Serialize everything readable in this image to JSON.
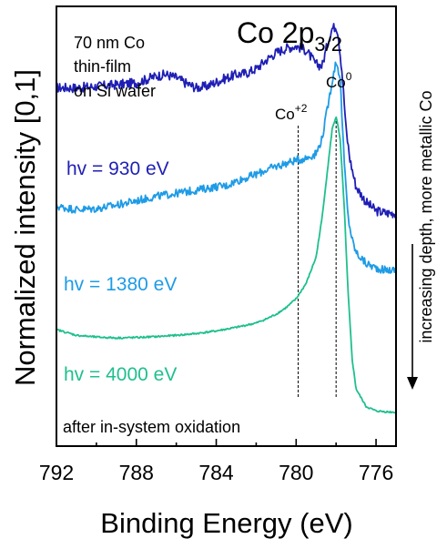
{
  "chart_data": {
    "type": "line",
    "title": "Co 2p",
    "title_subscript": "3/2",
    "xlabel": "Binding Energy (eV)",
    "ylabel": "Normalized intensity [0,1]",
    "xlim": [
      792,
      775
    ],
    "x_reversed": true,
    "ylim": [
      0,
      1
    ],
    "y_ticks_shown": false,
    "x_ticks": [
      "792",
      "788",
      "784",
      "780",
      "776"
    ],
    "x_tick_values": [
      792,
      788,
      784,
      780,
      776
    ],
    "sample_note": [
      "70 nm Co",
      "thin-film",
      "on Si wafer"
    ],
    "bottom_note": "after in-system oxidation",
    "side_note": "increasing depth, more metallic Co",
    "colors": {
      "axis": "#000000",
      "ref_lines": "#000000"
    },
    "reference_lines": [
      {
        "label_base": "Co",
        "label_sup": "+2",
        "x": 779.9
      },
      {
        "label_base": "Co",
        "label_sup": "0",
        "x": 778.0
      }
    ],
    "series": [
      {
        "name": "hv = 930 eV",
        "color": "#1f1fb5",
        "x": [
          792,
          791,
          790,
          789,
          788,
          787,
          786.5,
          786,
          785.5,
          785,
          784.5,
          784,
          783.5,
          783,
          782.5,
          782,
          781.5,
          781,
          780.5,
          780,
          779.5,
          779,
          778.7,
          778.4,
          778.2,
          778.0,
          777.9,
          777.7,
          777.5,
          777.3,
          777,
          776.5,
          776,
          775.5,
          775
        ],
        "y": [
          0.815,
          0.815,
          0.818,
          0.822,
          0.826,
          0.842,
          0.845,
          0.838,
          0.825,
          0.815,
          0.818,
          0.828,
          0.837,
          0.845,
          0.848,
          0.858,
          0.878,
          0.895,
          0.905,
          0.91,
          0.9,
          0.868,
          0.865,
          0.92,
          0.95,
          0.955,
          0.94,
          0.85,
          0.72,
          0.65,
          0.59,
          0.555,
          0.535,
          0.53,
          0.53
        ]
      },
      {
        "name": "hv = 1380 eV",
        "color": "#1e9be6",
        "x": [
          792,
          791,
          790,
          789,
          788,
          787,
          786,
          785,
          784,
          783.5,
          783,
          782.5,
          782,
          781.5,
          781,
          780.5,
          780,
          779.5,
          779,
          778.7,
          778.5,
          778.2,
          778.0,
          777.8,
          777.6,
          777.4,
          777.2,
          777,
          776.5,
          776,
          775.5,
          775
        ],
        "y": [
          0.545,
          0.538,
          0.54,
          0.548,
          0.558,
          0.568,
          0.575,
          0.582,
          0.59,
          0.592,
          0.603,
          0.61,
          0.618,
          0.628,
          0.636,
          0.643,
          0.65,
          0.655,
          0.665,
          0.7,
          0.75,
          0.83,
          0.875,
          0.84,
          0.65,
          0.52,
          0.47,
          0.44,
          0.415,
          0.405,
          0.4,
          0.4
        ]
      },
      {
        "name": "hv = 4000 eV",
        "color": "#1fbf8e",
        "x": [
          792,
          791,
          790,
          789,
          788,
          787,
          786,
          785,
          784,
          783,
          782,
          781.5,
          781,
          780.5,
          780,
          779.5,
          779,
          778.7,
          778.4,
          778.2,
          778.0,
          777.8,
          777.6,
          777.4,
          777.2,
          777,
          776.5,
          776,
          775.5,
          775
        ],
        "y": [
          0.265,
          0.252,
          0.248,
          0.246,
          0.247,
          0.249,
          0.252,
          0.256,
          0.262,
          0.27,
          0.28,
          0.289,
          0.3,
          0.315,
          0.335,
          0.37,
          0.43,
          0.52,
          0.64,
          0.72,
          0.75,
          0.7,
          0.55,
          0.35,
          0.2,
          0.13,
          0.09,
          0.08,
          0.078,
          0.077
        ]
      }
    ]
  }
}
